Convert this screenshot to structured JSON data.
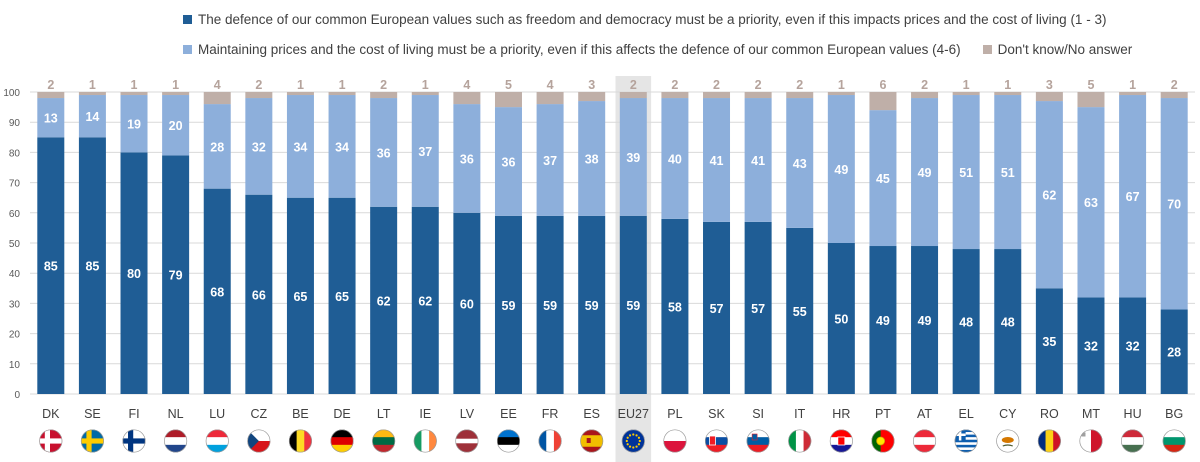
{
  "legend": {
    "series1": "The defence of our common European values such as freedom and democracy must be a priority, even if this impacts prices and the cost of living (1 - 3)",
    "series2": "Maintaining prices and the cost of living must be a priority, even if this affects the defence of our common European values (4-6)",
    "series3": "Don't know/No answer"
  },
  "colors": {
    "series1": "#1F5D95",
    "series2": "#8DAFDB",
    "series3": "#BFAFA8",
    "highlight": "#E5E5E5",
    "grid": "#D9D9D9"
  },
  "chart_data": {
    "type": "bar",
    "stacked": true,
    "categories": [
      "DK",
      "SE",
      "FI",
      "NL",
      "LU",
      "CZ",
      "BE",
      "DE",
      "LT",
      "IE",
      "LV",
      "EE",
      "FR",
      "ES",
      "EU27",
      "PL",
      "SK",
      "SI",
      "IT",
      "HR",
      "PT",
      "AT",
      "EL",
      "CY",
      "RO",
      "MT",
      "HU",
      "BG"
    ],
    "highlight_category": "EU27",
    "series": [
      {
        "name": "The defence of our common European values such as freedom and democracy must be a priority, even if this impacts prices and the cost of living (1 - 3)",
        "values": [
          85,
          85,
          80,
          79,
          68,
          66,
          65,
          65,
          62,
          62,
          60,
          59,
          59,
          59,
          59,
          58,
          57,
          57,
          55,
          50,
          49,
          49,
          48,
          48,
          35,
          32,
          32,
          28
        ]
      },
      {
        "name": "Maintaining prices and the cost of living must be a priority, even if this affects the defence of our common European values (4-6)",
        "values": [
          13,
          14,
          19,
          20,
          28,
          32,
          34,
          34,
          36,
          37,
          36,
          36,
          37,
          38,
          39,
          40,
          41,
          41,
          43,
          49,
          45,
          49,
          51,
          51,
          62,
          63,
          67,
          70
        ]
      },
      {
        "name": "Don't know/No answer",
        "values": [
          2,
          1,
          1,
          1,
          4,
          2,
          1,
          1,
          2,
          1,
          4,
          5,
          4,
          3,
          2,
          2,
          2,
          2,
          2,
          1,
          6,
          2,
          1,
          1,
          3,
          5,
          1,
          2
        ]
      }
    ],
    "yticks": [
      "0",
      "10",
      "20",
      "30",
      "40",
      "50",
      "60",
      "70",
      "80",
      "90",
      "100"
    ],
    "ylim": [
      0,
      100
    ],
    "grid": true,
    "legend_position": "top"
  },
  "flags": [
    "DK",
    "SE",
    "FI",
    "NL",
    "LU",
    "CZ",
    "BE",
    "DE",
    "LT",
    "IE",
    "LV",
    "EE",
    "FR",
    "ES",
    "EU27",
    "PL",
    "SK",
    "SI",
    "IT",
    "HR",
    "PT",
    "AT",
    "EL",
    "CY",
    "RO",
    "MT",
    "HU",
    "BG"
  ]
}
